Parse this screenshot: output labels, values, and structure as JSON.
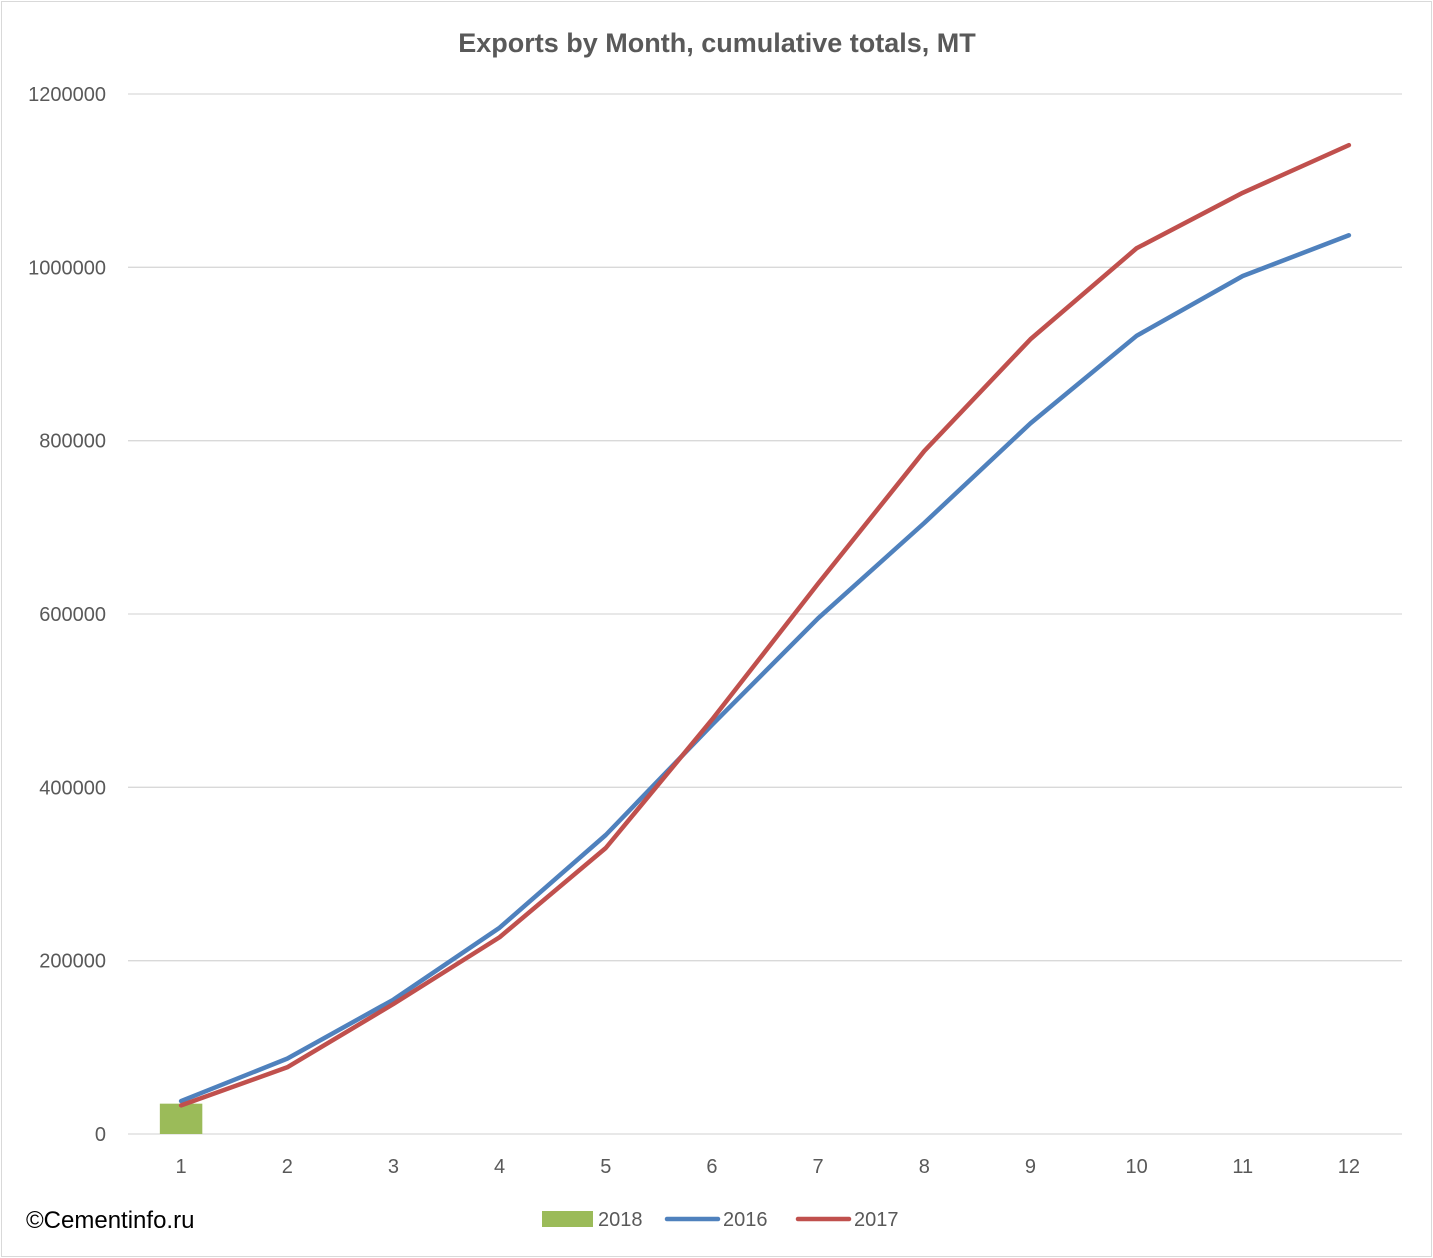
{
  "watermark": "©Cementinfo.ru",
  "colors": {
    "2018": "#9bbb59",
    "2016": "#4f81bd",
    "2017": "#c0504d",
    "grid": "#d9d9d9",
    "text": "#595959"
  },
  "chart_data": {
    "type": "line",
    "title": "Exports by Month, cumulative totals, MT",
    "xlabel": "",
    "ylabel": "",
    "categories": [
      "1",
      "2",
      "3",
      "4",
      "5",
      "6",
      "7",
      "8",
      "9",
      "10",
      "11",
      "12"
    ],
    "ylim": [
      0,
      1200000
    ],
    "yticks": [
      "0",
      "200000",
      "400000",
      "600000",
      "800000",
      "1000000",
      "1200000"
    ],
    "grid": true,
    "legend_position": "bottom",
    "series": [
      {
        "name": "2018",
        "type": "bar",
        "color": "#9bbb59",
        "values": [
          35000,
          null,
          null,
          null,
          null,
          null,
          null,
          null,
          null,
          null,
          null,
          null
        ]
      },
      {
        "name": "2016",
        "type": "line",
        "color": "#4f81bd",
        "values": [
          38000,
          87000,
          155000,
          238000,
          345000,
          472000,
          595000,
          705000,
          820000,
          921000,
          990000,
          1037000
        ]
      },
      {
        "name": "2017",
        "type": "line",
        "color": "#c0504d",
        "values": [
          33000,
          77000,
          150000,
          227000,
          330000,
          478000,
          635000,
          788000,
          917000,
          1022000,
          1086000,
          1141000
        ]
      }
    ]
  }
}
